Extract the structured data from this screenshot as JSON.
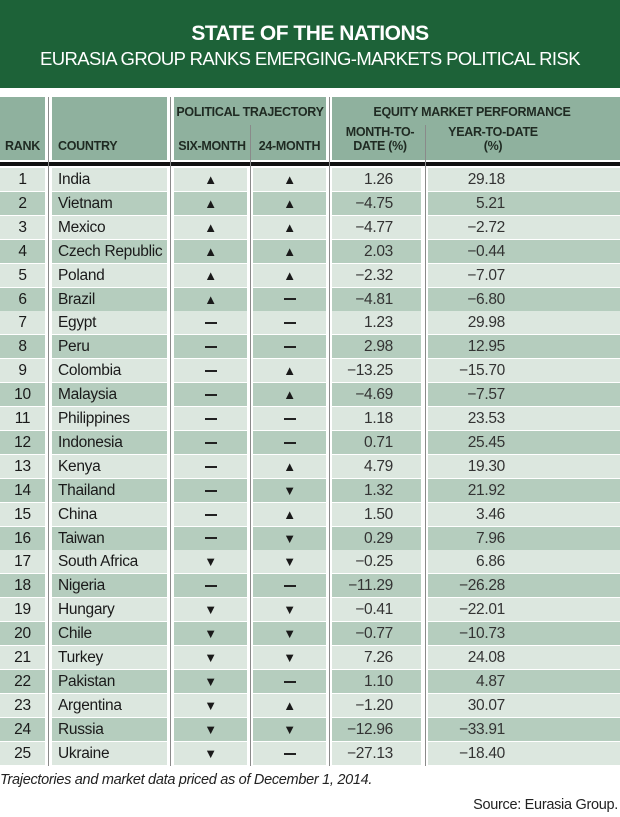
{
  "title": "STATE OF THE NATIONS",
  "subtitle": "EURASIA GROUP RANKS EMERGING-MARKETS POLITICAL RISK",
  "headers": {
    "rank": "RANK",
    "country": "COUNTRY",
    "political_trajectory": "POLITICAL TRAJECTORY",
    "six_month": "SIX-MONTH",
    "twentyfour_month": "24-MONTH",
    "equity": "EQUITY MARKET PERFORMANCE",
    "mtd_line1": "MONTH-TO-",
    "mtd_line2": "DATE (%)",
    "ytd_line1": "YEAR-TO-DATE",
    "ytd_line2": "(%)"
  },
  "rows": [
    {
      "rank": "1",
      "country": "India",
      "six": "up",
      "m24": "up",
      "mtd": "1.26",
      "ytd": "29.18"
    },
    {
      "rank": "2",
      "country": "Vietnam",
      "six": "up",
      "m24": "up",
      "mtd": "−4.75",
      "ytd": "5.21"
    },
    {
      "rank": "3",
      "country": "Mexico",
      "six": "up",
      "m24": "up",
      "mtd": "−4.77",
      "ytd": "−2.72"
    },
    {
      "rank": "4",
      "country": "Czech Republic",
      "six": "up",
      "m24": "up",
      "mtd": "2.03",
      "ytd": "−0.44"
    },
    {
      "rank": "5",
      "country": "Poland",
      "six": "up",
      "m24": "up",
      "mtd": "−2.32",
      "ytd": "−7.07"
    },
    {
      "rank": "6",
      "country": "Brazil",
      "six": "up",
      "m24": "flat",
      "mtd": "−4.81",
      "ytd": "−6.80"
    },
    {
      "rank": "7",
      "country": "Egypt",
      "six": "flat",
      "m24": "flat",
      "mtd": "1.23",
      "ytd": "29.98"
    },
    {
      "rank": "8",
      "country": "Peru",
      "six": "flat",
      "m24": "flat",
      "mtd": "2.98",
      "ytd": "12.95"
    },
    {
      "rank": "9",
      "country": "Colombia",
      "six": "flat",
      "m24": "up",
      "mtd": "−13.25",
      "ytd": "−15.70"
    },
    {
      "rank": "10",
      "country": "Malaysia",
      "six": "flat",
      "m24": "up",
      "mtd": "−4.69",
      "ytd": "−7.57"
    },
    {
      "rank": "11",
      "country": "Philippines",
      "six": "flat",
      "m24": "flat",
      "mtd": "1.18",
      "ytd": "23.53"
    },
    {
      "rank": "12",
      "country": "Indonesia",
      "six": "flat",
      "m24": "flat",
      "mtd": "0.71",
      "ytd": "25.45"
    },
    {
      "rank": "13",
      "country": "Kenya",
      "six": "flat",
      "m24": "up",
      "mtd": "4.79",
      "ytd": "19.30"
    },
    {
      "rank": "14",
      "country": "Thailand",
      "six": "flat",
      "m24": "down",
      "mtd": "1.32",
      "ytd": "21.92"
    },
    {
      "rank": "15",
      "country": "China",
      "six": "flat",
      "m24": "up",
      "mtd": "1.50",
      "ytd": "3.46"
    },
    {
      "rank": "16",
      "country": "Taiwan",
      "six": "flat",
      "m24": "down",
      "mtd": "0.29",
      "ytd": "7.96"
    },
    {
      "rank": "17",
      "country": "South Africa",
      "six": "down",
      "m24": "down",
      "mtd": "−0.25",
      "ytd": "6.86"
    },
    {
      "rank": "18",
      "country": "Nigeria",
      "six": "flat",
      "m24": "flat",
      "mtd": "−11.29",
      "ytd": "−26.28"
    },
    {
      "rank": "19",
      "country": "Hungary",
      "six": "down",
      "m24": "down",
      "mtd": "−0.41",
      "ytd": "−22.01"
    },
    {
      "rank": "20",
      "country": "Chile",
      "six": "down",
      "m24": "down",
      "mtd": "−0.77",
      "ytd": "−10.73"
    },
    {
      "rank": "21",
      "country": "Turkey",
      "six": "down",
      "m24": "down",
      "mtd": "7.26",
      "ytd": "24.08"
    },
    {
      "rank": "22",
      "country": "Pakistan",
      "six": "down",
      "m24": "flat",
      "mtd": "1.10",
      "ytd": "4.87"
    },
    {
      "rank": "23",
      "country": "Argentina",
      "six": "down",
      "m24": "up",
      "mtd": "−1.20",
      "ytd": "30.07"
    },
    {
      "rank": "24",
      "country": "Russia",
      "six": "down",
      "m24": "down",
      "mtd": "−12.96",
      "ytd": "−33.91"
    },
    {
      "rank": "25",
      "country": "Ukraine",
      "six": "down",
      "m24": "flat",
      "mtd": "−27.13",
      "ytd": "−18.40"
    }
  ],
  "footnote": "Trajectories and market data priced as of December 1, 2014.",
  "source": "Source: Eurasia Group.",
  "colors": {
    "banner": "#1d6238",
    "header": "#8fb19e",
    "row_light": "#dce7df",
    "row_dark": "#b5cdbe"
  }
}
